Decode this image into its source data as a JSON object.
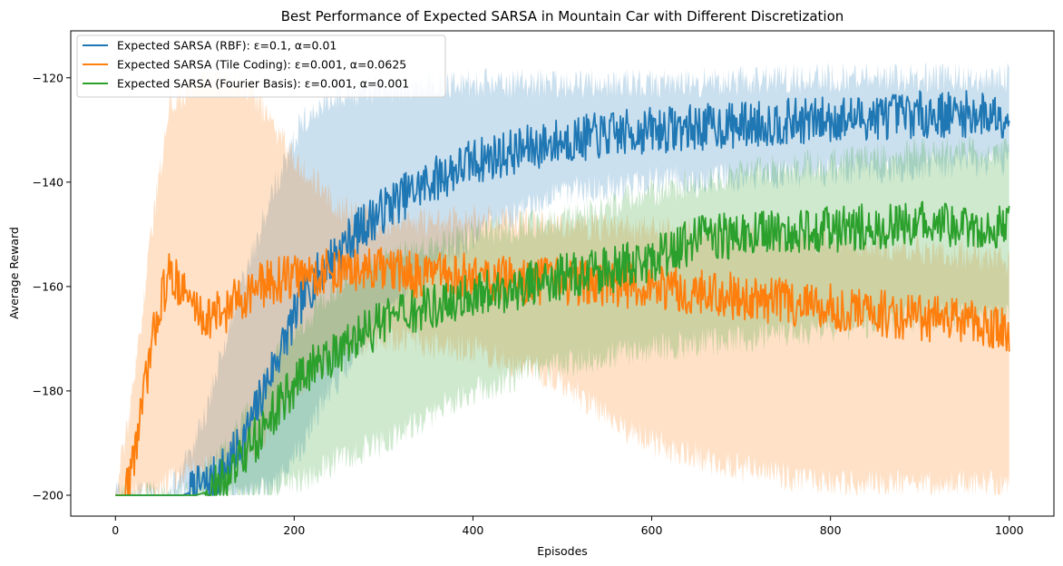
{
  "chart_data": {
    "type": "line",
    "title": "Best Performance of Expected SARSA in Mountain Car with Different Discretization",
    "xlabel": "Episodes",
    "ylabel": "Average Reward",
    "xlim": [
      -50,
      1050
    ],
    "ylim": [
      -204,
      -111
    ],
    "xticks": [
      0,
      200,
      400,
      600,
      800,
      1000
    ],
    "yticks": [
      -200,
      -180,
      -160,
      -140,
      -120
    ],
    "grid": false,
    "legend_position": "top-left",
    "n_episodes": 1000,
    "series": [
      {
        "name": "Expected SARSA (RBF): ε=0.1, α=0.01",
        "color": "#1f77b4",
        "mean_keypoints": [
          [
            0,
            -200
          ],
          [
            75,
            -200
          ],
          [
            90,
            -199
          ],
          [
            110,
            -197
          ],
          [
            130,
            -193
          ],
          [
            150,
            -187
          ],
          [
            170,
            -178
          ],
          [
            190,
            -170
          ],
          [
            210,
            -162
          ],
          [
            230,
            -157
          ],
          [
            250,
            -153
          ],
          [
            280,
            -148
          ],
          [
            310,
            -144
          ],
          [
            350,
            -140
          ],
          [
            400,
            -136
          ],
          [
            450,
            -134
          ],
          [
            500,
            -132
          ],
          [
            600,
            -130
          ],
          [
            700,
            -129
          ],
          [
            800,
            -128
          ],
          [
            900,
            -127
          ],
          [
            1000,
            -127
          ]
        ],
        "band_upper_keypoints": [
          [
            0,
            -200
          ],
          [
            60,
            -200
          ],
          [
            100,
            -185
          ],
          [
            140,
            -160
          ],
          [
            180,
            -140
          ],
          [
            210,
            -128
          ],
          [
            250,
            -123
          ],
          [
            300,
            -122
          ],
          [
            400,
            -121
          ],
          [
            600,
            -121
          ],
          [
            800,
            -120
          ],
          [
            1000,
            -120
          ]
        ],
        "band_lower_keypoints": [
          [
            0,
            -200
          ],
          [
            120,
            -200
          ],
          [
            150,
            -200
          ],
          [
            180,
            -198
          ],
          [
            210,
            -190
          ],
          [
            240,
            -180
          ],
          [
            270,
            -172
          ],
          [
            300,
            -165
          ],
          [
            350,
            -157
          ],
          [
            400,
            -150
          ],
          [
            450,
            -146
          ],
          [
            500,
            -142
          ],
          [
            600,
            -140
          ],
          [
            700,
            -139
          ],
          [
            800,
            -138
          ],
          [
            900,
            -137
          ],
          [
            1000,
            -136
          ]
        ]
      },
      {
        "name": "Expected SARSA (Tile Coding): ε=0.001, α=0.0625",
        "color": "#ff7f0e",
        "mean_keypoints": [
          [
            0,
            -200
          ],
          [
            10,
            -200
          ],
          [
            20,
            -193
          ],
          [
            30,
            -183
          ],
          [
            40,
            -172
          ],
          [
            50,
            -163
          ],
          [
            60,
            -158
          ],
          [
            70,
            -159
          ],
          [
            80,
            -162
          ],
          [
            100,
            -166
          ],
          [
            120,
            -165
          ],
          [
            140,
            -162
          ],
          [
            160,
            -160
          ],
          [
            200,
            -158
          ],
          [
            250,
            -157
          ],
          [
            300,
            -157
          ],
          [
            350,
            -158
          ],
          [
            400,
            -158
          ],
          [
            450,
            -159
          ],
          [
            500,
            -159
          ],
          [
            600,
            -160
          ],
          [
            700,
            -162
          ],
          [
            800,
            -164
          ],
          [
            900,
            -166
          ],
          [
            1000,
            -168
          ]
        ],
        "band_upper_keypoints": [
          [
            0,
            -200
          ],
          [
            20,
            -180
          ],
          [
            40,
            -150
          ],
          [
            60,
            -125
          ],
          [
            100,
            -120
          ],
          [
            150,
            -122
          ],
          [
            200,
            -135
          ],
          [
            250,
            -145
          ],
          [
            300,
            -148
          ],
          [
            400,
            -147
          ],
          [
            500,
            -148
          ],
          [
            600,
            -149
          ],
          [
            700,
            -150
          ],
          [
            800,
            -151
          ],
          [
            900,
            -153
          ],
          [
            1000,
            -155
          ]
        ],
        "band_lower_keypoints": [
          [
            0,
            -200
          ],
          [
            40,
            -200
          ],
          [
            80,
            -195
          ],
          [
            120,
            -195
          ],
          [
            160,
            -190
          ],
          [
            200,
            -180
          ],
          [
            250,
            -172
          ],
          [
            300,
            -170
          ],
          [
            400,
            -172
          ],
          [
            500,
            -178
          ],
          [
            550,
            -185
          ],
          [
            600,
            -190
          ],
          [
            700,
            -195
          ],
          [
            800,
            -198
          ],
          [
            900,
            -198
          ],
          [
            1000,
            -198
          ]
        ]
      },
      {
        "name": "Expected SARSA (Fourier Basis): ε=0.001, α=0.001",
        "color": "#2ca02c",
        "mean_keypoints": [
          [
            0,
            -200
          ],
          [
            90,
            -200
          ],
          [
            110,
            -199
          ],
          [
            130,
            -196
          ],
          [
            150,
            -191
          ],
          [
            170,
            -186
          ],
          [
            190,
            -181
          ],
          [
            210,
            -177
          ],
          [
            240,
            -173
          ],
          [
            270,
            -170
          ],
          [
            300,
            -167
          ],
          [
            350,
            -164
          ],
          [
            400,
            -162
          ],
          [
            450,
            -160
          ],
          [
            500,
            -158
          ],
          [
            550,
            -157
          ],
          [
            600,
            -155
          ],
          [
            650,
            -151
          ],
          [
            700,
            -150
          ],
          [
            800,
            -149
          ],
          [
            900,
            -148
          ],
          [
            1000,
            -149
          ]
        ],
        "band_upper_keypoints": [
          [
            0,
            -200
          ],
          [
            80,
            -200
          ],
          [
            120,
            -192
          ],
          [
            160,
            -180
          ],
          [
            200,
            -168
          ],
          [
            250,
            -160
          ],
          [
            300,
            -155
          ],
          [
            400,
            -150
          ],
          [
            500,
            -147
          ],
          [
            600,
            -142
          ],
          [
            700,
            -138
          ],
          [
            800,
            -136
          ],
          [
            900,
            -134
          ],
          [
            1000,
            -134
          ]
        ],
        "band_lower_keypoints": [
          [
            0,
            -200
          ],
          [
            100,
            -200
          ],
          [
            150,
            -200
          ],
          [
            200,
            -198
          ],
          [
            250,
            -193
          ],
          [
            300,
            -190
          ],
          [
            350,
            -185
          ],
          [
            400,
            -180
          ],
          [
            500,
            -175
          ],
          [
            600,
            -172
          ],
          [
            700,
            -170
          ],
          [
            800,
            -168
          ],
          [
            900,
            -166
          ],
          [
            1000,
            -166
          ]
        ]
      }
    ]
  }
}
